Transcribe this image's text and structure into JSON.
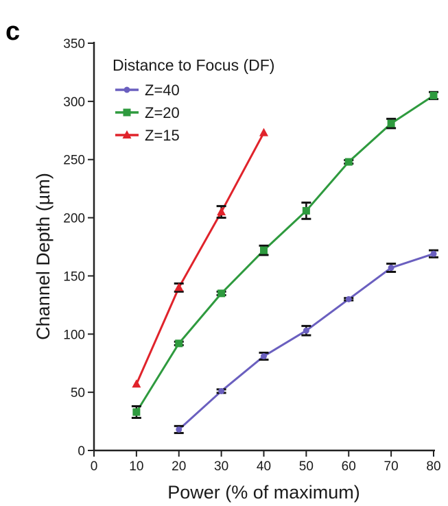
{
  "panel_label": "c",
  "chart_data": {
    "type": "line",
    "xlabel": "Power (% of maximum)",
    "ylabel": "Channel Depth (µm)",
    "xlim": [
      0,
      80
    ],
    "ylim": [
      0,
      350
    ],
    "xticks": [
      0,
      10,
      20,
      30,
      40,
      50,
      60,
      70,
      80
    ],
    "yticks": [
      0,
      50,
      100,
      150,
      200,
      250,
      300,
      350
    ],
    "grid": false,
    "legend": {
      "title": "Distance to Focus (DF)",
      "placement": "top-left"
    },
    "series": [
      {
        "name": "Z=40",
        "color": "#6a5fbf",
        "marker": "circle",
        "x": [
          20,
          30,
          40,
          50,
          60,
          70,
          80
        ],
        "y": [
          18,
          51,
          81,
          103,
          130,
          157,
          169
        ],
        "err": [
          3,
          1.5,
          3,
          4,
          1,
          3.5,
          3
        ]
      },
      {
        "name": "Z=20",
        "color": "#2e9a3e",
        "marker": "square",
        "x": [
          10,
          20,
          30,
          40,
          50,
          60,
          70,
          80
        ],
        "y": [
          33,
          92,
          135,
          172,
          206,
          248,
          281,
          305
        ],
        "err": [
          5,
          1.5,
          1.5,
          4,
          7,
          1.5,
          4,
          3
        ]
      },
      {
        "name": "Z=15",
        "color": "#e0232b",
        "marker": "triangle",
        "x": [
          10,
          20,
          30,
          40
        ],
        "y": [
          57,
          140,
          205,
          273
        ],
        "err": [
          0,
          3.5,
          5,
          0
        ]
      }
    ]
  }
}
